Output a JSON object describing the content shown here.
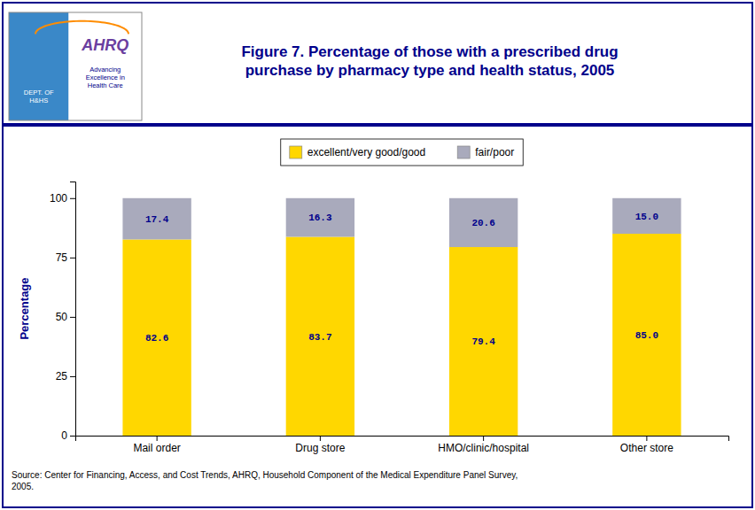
{
  "chart_data": {
    "type": "bar",
    "stacked": true,
    "title": "Figure 7. Percentage of those with a prescribed drug\npurchase by pharmacy type and health status, 2005",
    "ylabel": "Percentage",
    "categories": [
      "Mail order",
      "Drug store",
      "HMO/clinic/hospital",
      "Other store"
    ],
    "series": [
      {
        "name": "excellent/very good/good",
        "color": "#FFD700",
        "values": [
          82.6,
          83.7,
          79.4,
          85.0
        ],
        "value_labels": [
          "82.6",
          "83.7",
          "79.4",
          "85.0"
        ]
      },
      {
        "name": "fair/poor",
        "color": "#A9AABC",
        "values": [
          17.4,
          16.3,
          20.6,
          15.0
        ],
        "value_labels": [
          "17.4",
          "16.3",
          "20.6",
          "15.0"
        ]
      }
    ],
    "ylim": [
      0,
      107
    ],
    "yticks": [
      0,
      25,
      50,
      75,
      100
    ],
    "grid": false,
    "legend": "top",
    "data_labels": true,
    "annotations": [
      "Source:  Center for Financing, Access, and Cost Trends, AHRQ, Household Component of the Medical Expenditure Panel Survey,\n2005.",
      "AHRQ",
      "Advancing\nExcellence in\nHealth Care",
      "DEPT. OF\nH&HS"
    ]
  }
}
